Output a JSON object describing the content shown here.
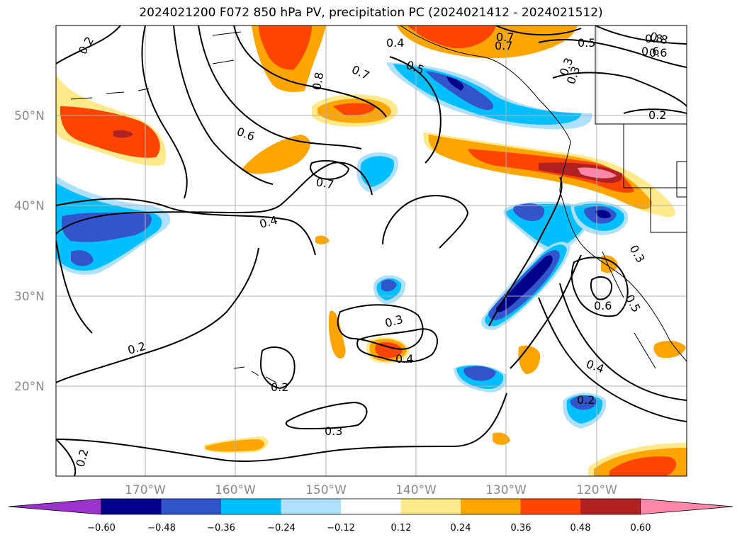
{
  "title": "2024021200 F072 850 hPa PV, precipitation PC (2024021412 - 2024021512)",
  "map": {
    "lat_ticks": [
      "20°N",
      "30°N",
      "40°N",
      "50°N"
    ],
    "lon_ticks": [
      "170°W",
      "160°W",
      "150°W",
      "140°W",
      "130°W",
      "120°W"
    ],
    "contour_labels": [
      "0.2",
      "0.4",
      "0.5",
      "0.6",
      "0.7",
      "0.8",
      "0.3",
      "0.7",
      "0.6",
      "0.7",
      "0.4",
      "0.3",
      "0.4",
      "0.2",
      "0.2",
      "0.3",
      "0.2",
      "0.6",
      "0.3",
      "0.5",
      "0.4",
      "0.2",
      "0.8",
      "0.7",
      "0.6",
      "0.5",
      "0.3",
      "0.2",
      "0.8"
    ],
    "fill_colors": {
      "purple": "#9933cc",
      "navy": "#00008b",
      "blue": "#3355cc",
      "cyan": "#00bfff",
      "lightblue": "#b0e0ff",
      "yellow": "#ffe98a",
      "orange": "#ffa500",
      "redorange": "#ff4500",
      "darkred": "#b22222",
      "pink": "#ff88aa"
    }
  },
  "colorbar": {
    "ticks": [
      "−0.60",
      "−0.48",
      "−0.36",
      "−0.24",
      "−0.12",
      "0.12",
      "0.24",
      "0.36",
      "0.48",
      "0.60"
    ],
    "colors": [
      "#9933cc",
      "#00008b",
      "#3355cc",
      "#00bfff",
      "#b0e0ff",
      "#ffffff",
      "#ffe98a",
      "#ffa500",
      "#ff4500",
      "#b22222",
      "#ff88aa"
    ]
  }
}
